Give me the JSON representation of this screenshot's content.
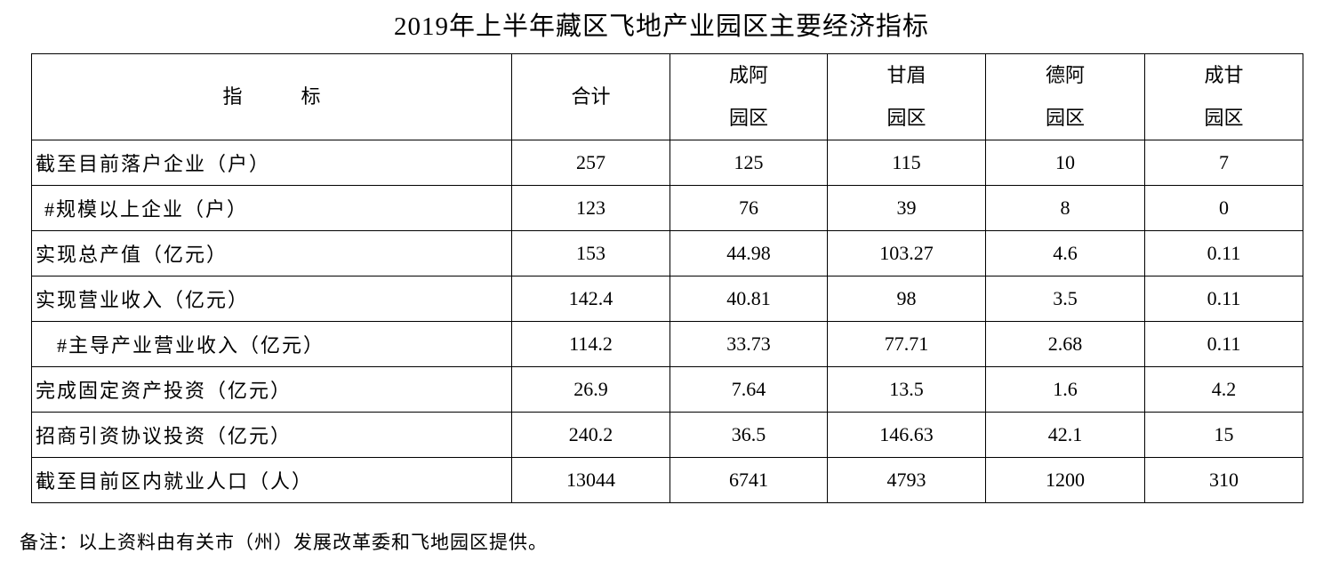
{
  "title": "2019年上半年藏区飞地产业园区主要经济指标",
  "table": {
    "header": [
      "指　　　标",
      "合计",
      [
        "成阿",
        "园区"
      ],
      [
        "甘眉",
        "园区"
      ],
      [
        "德阿",
        "园区"
      ],
      [
        "成甘",
        "园区"
      ]
    ],
    "rows": [
      [
        "截至目前落户企业（户）",
        257,
        125,
        115,
        10,
        7
      ],
      [
        "#规模以上企业（户）",
        123,
        76,
        39,
        8,
        0
      ],
      [
        "实现总产值（亿元）",
        153,
        44.98,
        103.27,
        4.6,
        0.11
      ],
      [
        "实现营业收入（亿元）",
        142.4,
        40.81,
        98,
        3.5,
        0.11
      ],
      [
        "#主导产业营业收入（亿元）",
        114.2,
        33.73,
        77.71,
        2.68,
        0.11
      ],
      [
        "完成固定资产投资（亿元）",
        26.9,
        7.64,
        13.5,
        1.6,
        4.2
      ],
      [
        "招商引资协议投资（亿元）",
        240.2,
        36.5,
        146.63,
        42.1,
        15
      ],
      [
        "截至目前区内就业人口（人）",
        13044,
        6741,
        4793,
        1200,
        310
      ]
    ]
  },
  "note": "备注：以上资料由有关市（州）发展改革委和飞地园区提供。"
}
